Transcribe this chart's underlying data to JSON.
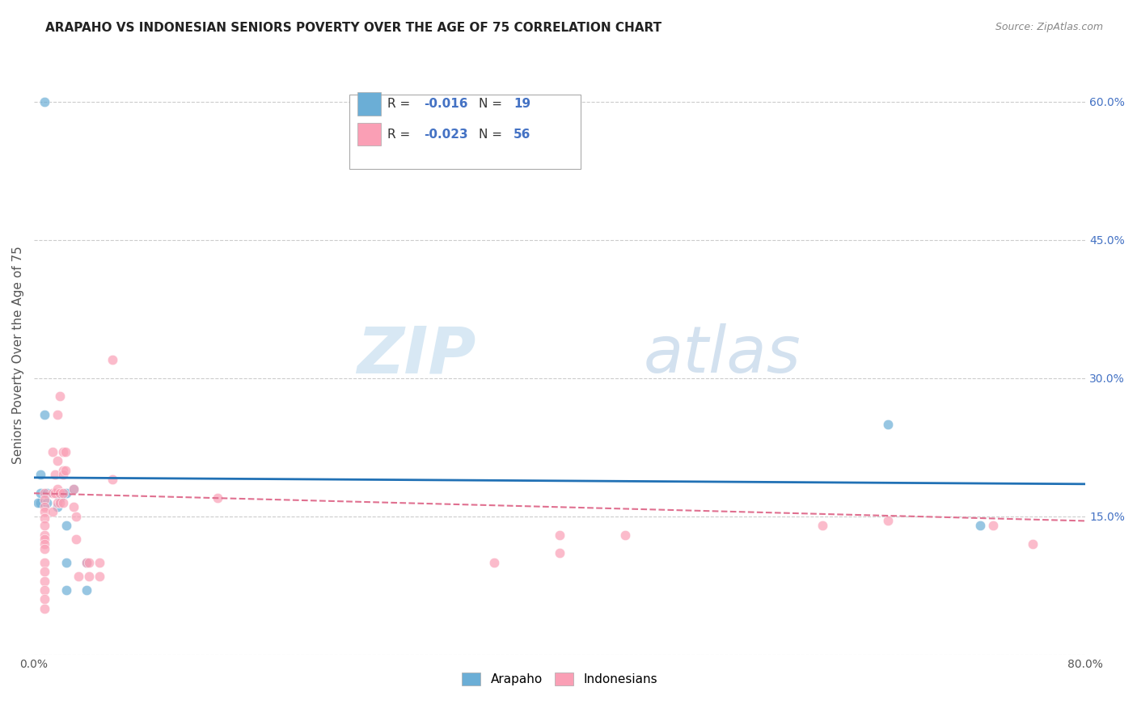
{
  "title": "ARAPAHO VS INDONESIAN SENIORS POVERTY OVER THE AGE OF 75 CORRELATION CHART",
  "source": "Source: ZipAtlas.com",
  "ylabel": "Seniors Poverty Over the Age of 75",
  "xlim": [
    0.0,
    0.8
  ],
  "ylim": [
    0.0,
    0.65
  ],
  "xticks": [
    0.0,
    0.1,
    0.2,
    0.3,
    0.4,
    0.5,
    0.6,
    0.7,
    0.8
  ],
  "xticklabels": [
    "0.0%",
    "",
    "",
    "",
    "",
    "",
    "",
    "",
    "80.0%"
  ],
  "yticks": [
    0.0,
    0.15,
    0.3,
    0.45,
    0.6
  ],
  "yticklabels": [
    "",
    "15.0%",
    "30.0%",
    "45.0%",
    "60.0%"
  ],
  "grid_color": "#cccccc",
  "watermark_zip": "ZIP",
  "watermark_atlas": "atlas",
  "legend_R_arapaho": "-0.016",
  "legend_N_arapaho": "19",
  "legend_R_indonesian": "-0.023",
  "legend_N_indonesian": "56",
  "arapaho_color": "#6baed6",
  "indonesian_color": "#fa9fb5",
  "arapaho_line_color": "#2171b5",
  "indonesian_line_color": "#e07090",
  "arapaho_x": [
    0.008,
    0.008,
    0.005,
    0.005,
    0.005,
    0.003,
    0.01,
    0.01,
    0.018,
    0.02,
    0.025,
    0.025,
    0.025,
    0.025,
    0.03,
    0.04,
    0.04,
    0.65,
    0.72
  ],
  "arapaho_y": [
    0.6,
    0.26,
    0.195,
    0.175,
    0.165,
    0.165,
    0.175,
    0.165,
    0.16,
    0.17,
    0.175,
    0.14,
    0.1,
    0.07,
    0.18,
    0.1,
    0.07,
    0.25,
    0.14
  ],
  "indonesian_x": [
    0.008,
    0.008,
    0.008,
    0.008,
    0.008,
    0.008,
    0.008,
    0.008,
    0.008,
    0.008,
    0.008,
    0.008,
    0.008,
    0.008,
    0.008,
    0.008,
    0.014,
    0.014,
    0.014,
    0.016,
    0.016,
    0.018,
    0.018,
    0.018,
    0.018,
    0.02,
    0.02,
    0.02,
    0.022,
    0.022,
    0.022,
    0.022,
    0.022,
    0.024,
    0.024,
    0.03,
    0.03,
    0.032,
    0.032,
    0.034,
    0.04,
    0.042,
    0.042,
    0.05,
    0.05,
    0.06,
    0.06,
    0.14,
    0.35,
    0.4,
    0.4,
    0.45,
    0.6,
    0.65,
    0.73,
    0.76
  ],
  "indonesian_y": [
    0.175,
    0.168,
    0.16,
    0.155,
    0.148,
    0.14,
    0.13,
    0.125,
    0.12,
    0.115,
    0.1,
    0.09,
    0.08,
    0.07,
    0.06,
    0.05,
    0.22,
    0.175,
    0.155,
    0.195,
    0.175,
    0.26,
    0.21,
    0.18,
    0.165,
    0.28,
    0.175,
    0.165,
    0.22,
    0.2,
    0.195,
    0.175,
    0.165,
    0.22,
    0.2,
    0.18,
    0.16,
    0.15,
    0.125,
    0.085,
    0.1,
    0.1,
    0.085,
    0.1,
    0.085,
    0.32,
    0.19,
    0.17,
    0.1,
    0.13,
    0.11,
    0.13,
    0.14,
    0.145,
    0.14,
    0.12
  ],
  "arapaho_trend_x": [
    0.0,
    0.8
  ],
  "arapaho_trend_y": [
    0.192,
    0.185
  ],
  "indonesian_trend_x": [
    0.0,
    0.8
  ],
  "indonesian_trend_y": [
    0.175,
    0.145
  ],
  "background_color": "#ffffff",
  "title_fontsize": 11,
  "axis_label_fontsize": 11,
  "tick_fontsize": 10,
  "marker_size": 80
}
